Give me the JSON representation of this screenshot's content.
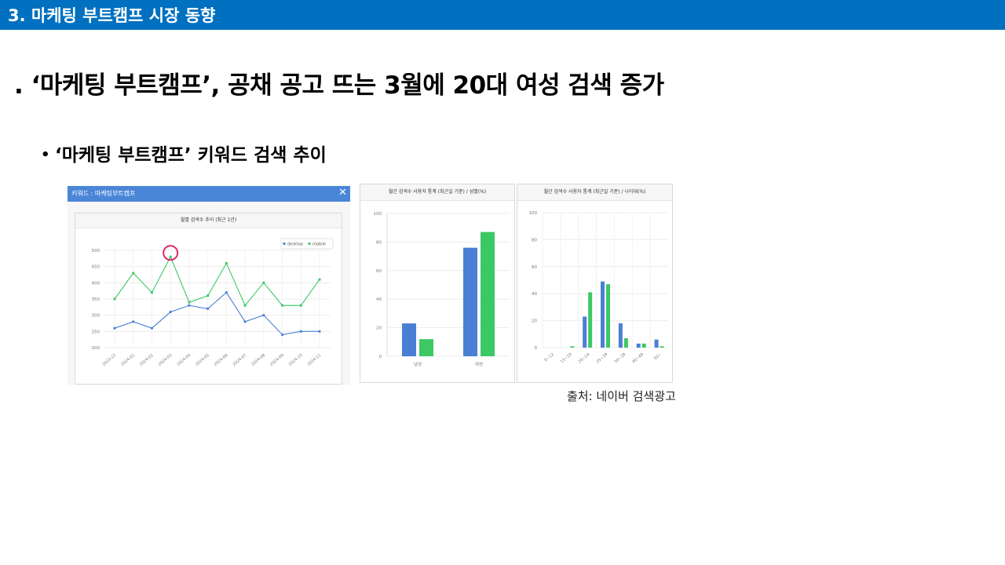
{
  "header": {
    "title": "3. 마케팅 부트캠프 시장 동향"
  },
  "headline": ". ‘마케팅 부트캠프’, 공채 공고 뜨는 3월에 20대 여성 검색 증가",
  "bullet": {
    "dot": "•",
    "text": "‘마케팅 부트캠프’ 키워드 검색 추이"
  },
  "source": "출처: 네이버 검색광고",
  "colors": {
    "header": "#0070c0",
    "desktop": "#4a7fd4",
    "mobile": "#3cc865",
    "highlight": "#e0286e"
  },
  "chart_data": [
    {
      "type": "line",
      "keyword_label": "키워드 : 마케팅부트캠프",
      "title": "월별 검색수 추이 (최근 1년)",
      "categories": [
        "2023-12",
        "2024-01",
        "2024-02",
        "2024-03",
        "2024-04",
        "2024-05",
        "2024-06",
        "2024-07",
        "2024-08",
        "2024-09",
        "2024-10",
        "2024-11"
      ],
      "series": [
        {
          "name": "desktop",
          "values": [
            260,
            280,
            260,
            310,
            330,
            320,
            370,
            280,
            300,
            240,
            250,
            250
          ]
        },
        {
          "name": "mobile",
          "values": [
            350,
            430,
            370,
            480,
            340,
            360,
            460,
            330,
            400,
            330,
            330,
            410
          ]
        }
      ],
      "ylim": [
        200,
        500
      ],
      "yticks": [
        200,
        250,
        300,
        350,
        400,
        450,
        500
      ],
      "legend": "top-right",
      "highlight_category": "2024-03",
      "grid": true
    },
    {
      "type": "bar",
      "title": "월간 검색수 사용자 통계 (최근일 기준) / 성별(%)",
      "categories": [
        "남성",
        "여성"
      ],
      "series": [
        {
          "name": "desktop",
          "values": [
            23,
            76
          ]
        },
        {
          "name": "mobile",
          "values": [
            12,
            87
          ]
        }
      ],
      "ylim": [
        0,
        100
      ],
      "yticks": [
        0,
        20,
        40,
        60,
        80,
        100
      ],
      "grid": true
    },
    {
      "type": "bar",
      "title": "월간 검색수 사용자 통계 (최근일 기준) / 나이대(%)",
      "categories": [
        "0~12",
        "13~19",
        "20~24",
        "25~29",
        "30~39",
        "40~49",
        "50~"
      ],
      "series": [
        {
          "name": "desktop",
          "values": [
            0,
            0,
            23,
            49,
            18,
            3,
            6
          ]
        },
        {
          "name": "mobile",
          "values": [
            0,
            1,
            41,
            47,
            7,
            3,
            1
          ]
        }
      ],
      "ylim": [
        0,
        100
      ],
      "yticks": [
        0,
        20,
        40,
        60,
        80,
        100
      ],
      "grid": true
    }
  ]
}
